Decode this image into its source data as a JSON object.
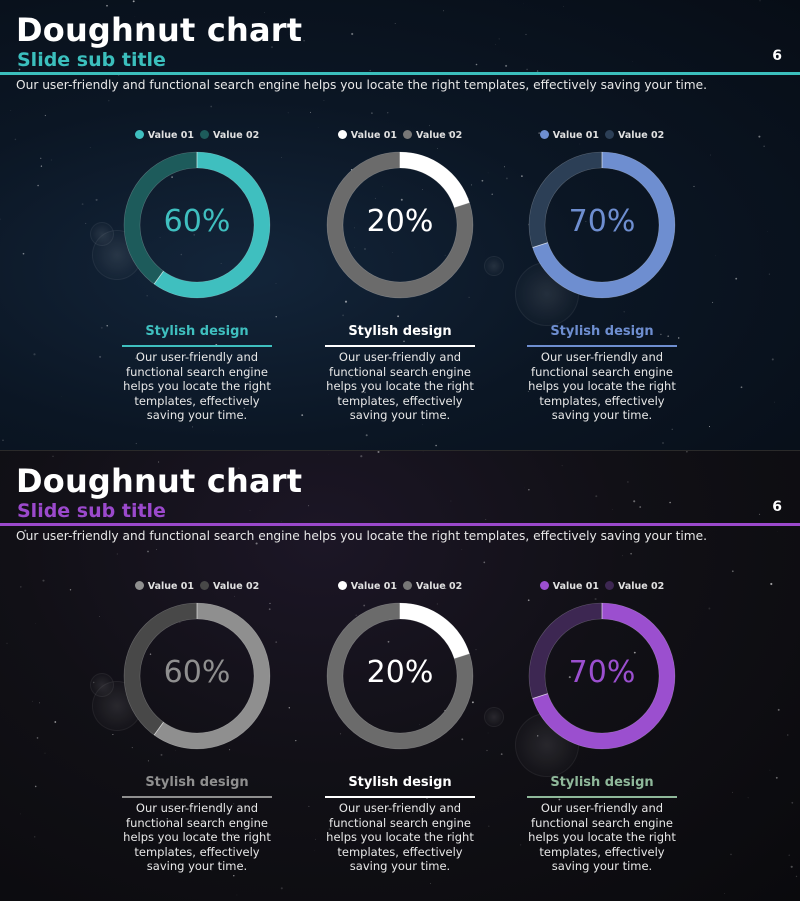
{
  "slides": [
    {
      "title": "Doughnut chart",
      "subtitle": "Slide sub title",
      "page_number": "6",
      "intro": "Our user-friendly and functional search engine helps you locate the right templates, effectively saving your time.",
      "accent_color": "#3bbfbd",
      "charts": [
        {
          "pct_label": "60%",
          "value": 60,
          "legend": [
            "Value 01",
            "Value 02"
          ],
          "primary_color": "#3fbfbf",
          "secondary_color": "#1d5b5b",
          "dot_colors": [
            "#3fbfbf",
            "#1d5b5b"
          ],
          "pct_color": "#3fbfbf",
          "label": "Stylish design",
          "label_color": "#3fbfbf",
          "underline_color": "#3fbfbf",
          "description": "Our user-friendly and functional search engine helps you locate the right templates, effectively saving your time."
        },
        {
          "pct_label": "20%",
          "value": 20,
          "legend": [
            "Value 01",
            "Value 02"
          ],
          "primary_color": "#ffffff",
          "secondary_color": "#6b6b6b",
          "dot_colors": [
            "#ffffff",
            "#777777"
          ],
          "pct_color": "#ffffff",
          "label": "Stylish design",
          "label_color": "#ffffff",
          "underline_color": "#ffffff",
          "description": "Our user-friendly and functional search engine helps you locate the right templates, effectively saving your time."
        },
        {
          "pct_label": "70%",
          "value": 70,
          "legend": [
            "Value 01",
            "Value 02"
          ],
          "primary_color": "#6e8ed0",
          "secondary_color": "#2c3f56",
          "dot_colors": [
            "#6e8ed0",
            "#2c3f56"
          ],
          "pct_color": "#6e8ed0",
          "label": "Stylish design",
          "label_color": "#6e8ed0",
          "underline_color": "#6e8ed0",
          "description": "Our user-friendly and functional search engine helps you locate the right templates, effectively saving your time."
        }
      ]
    },
    {
      "title": "Doughnut chart",
      "subtitle": "Slide sub title",
      "page_number": "6",
      "intro": "Our user-friendly and functional search engine helps you locate the right templates, effectively saving your time.",
      "accent_color": "#9b49cc",
      "charts": [
        {
          "pct_label": "60%",
          "value": 60,
          "legend": [
            "Value 01",
            "Value 02"
          ],
          "primary_color": "#8f8f8f",
          "secondary_color": "#484848",
          "dot_colors": [
            "#8f8f8f",
            "#484848"
          ],
          "pct_color": "#8f8f8f",
          "label": "Stylish design",
          "label_color": "#8f8f8f",
          "underline_color": "#8f8f8f",
          "description": "Our user-friendly and functional search engine helps you locate the right templates, effectively saving your time."
        },
        {
          "pct_label": "20%",
          "value": 20,
          "legend": [
            "Value 01",
            "Value 02"
          ],
          "primary_color": "#ffffff",
          "secondary_color": "#6b6b6b",
          "dot_colors": [
            "#ffffff",
            "#777777"
          ],
          "pct_color": "#ffffff",
          "label": "Stylish design",
          "label_color": "#ffffff",
          "underline_color": "#ffffff",
          "description": "Our user-friendly and functional search engine helps you locate the right templates, effectively saving your time."
        },
        {
          "pct_label": "70%",
          "value": 70,
          "legend": [
            "Value 01",
            "Value 02"
          ],
          "primary_color": "#9b4fcf",
          "secondary_color": "#3d2752",
          "dot_colors": [
            "#9b4fcf",
            "#3d2752"
          ],
          "pct_color": "#9b4fcf",
          "label": "Stylish design",
          "label_color": "#8fb89a",
          "underline_color": "#8fb89a",
          "description": "Our user-friendly and functional search engine helps you locate the right templates, effectively saving your time."
        }
      ]
    }
  ],
  "chart_data": [
    {
      "type": "pie",
      "categories": [
        "Value 01",
        "Value 02"
      ],
      "values": [
        60,
        40
      ],
      "label": "60%"
    },
    {
      "type": "pie",
      "categories": [
        "Value 01",
        "Value 02"
      ],
      "values": [
        20,
        80
      ],
      "label": "20%"
    },
    {
      "type": "pie",
      "categories": [
        "Value 01",
        "Value 02"
      ],
      "values": [
        70,
        30
      ],
      "label": "70%"
    },
    {
      "type": "pie",
      "categories": [
        "Value 01",
        "Value 02"
      ],
      "values": [
        60,
        40
      ],
      "label": "60%"
    },
    {
      "type": "pie",
      "categories": [
        "Value 01",
        "Value 02"
      ],
      "values": [
        20,
        80
      ],
      "label": "20%"
    },
    {
      "type": "pie",
      "categories": [
        "Value 01",
        "Value 02"
      ],
      "values": [
        70,
        30
      ],
      "label": "70%"
    }
  ]
}
